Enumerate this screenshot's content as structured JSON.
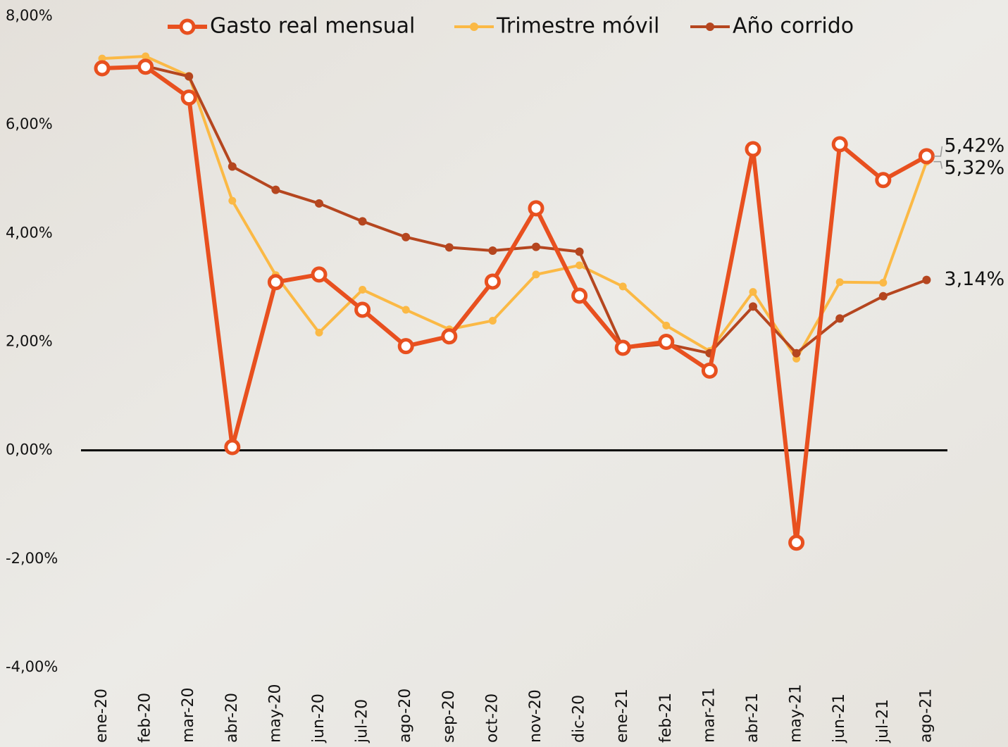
{
  "chart_data": {
    "type": "line",
    "categories": [
      "ene-20",
      "feb-20",
      "mar-20",
      "abr-20",
      "may-20",
      "jun-20",
      "jul-20",
      "ago-20",
      "sep-20",
      "oct-20",
      "nov-20",
      "dic-20",
      "ene-21",
      "feb-21",
      "mar-21",
      "abr-21",
      "may-21",
      "jun-21",
      "jul-21",
      "ago-21"
    ],
    "series": [
      {
        "name": "Gasto real mensual",
        "color": "#e8501f",
        "values": [
          7.04,
          7.07,
          6.5,
          0.06,
          3.1,
          3.24,
          2.59,
          1.92,
          2.1,
          3.11,
          4.46,
          2.85,
          1.89,
          2.0,
          1.47,
          5.55,
          -1.7,
          5.64,
          4.98,
          5.42
        ],
        "value_labels": [
          null,
          null,
          null,
          null,
          null,
          null,
          null,
          null,
          null,
          null,
          null,
          null,
          null,
          null,
          null,
          null,
          null,
          null,
          null,
          "5,42%"
        ]
      },
      {
        "name": "Trimestre móvil",
        "color": "#fbb945",
        "values": [
          7.22,
          7.26,
          6.9,
          4.6,
          3.23,
          2.17,
          2.96,
          2.59,
          2.23,
          2.39,
          3.24,
          3.41,
          3.02,
          2.3,
          1.83,
          2.92,
          1.69,
          3.1,
          3.09,
          5.32
        ],
        "value_labels": [
          null,
          null,
          null,
          null,
          null,
          null,
          null,
          null,
          null,
          null,
          null,
          null,
          null,
          null,
          null,
          null,
          null,
          null,
          null,
          "5,32%"
        ]
      },
      {
        "name": "Año corrido",
        "color": "#b5461f",
        "values": [
          7.04,
          7.08,
          6.89,
          5.23,
          4.8,
          4.55,
          4.22,
          3.93,
          3.74,
          3.68,
          3.75,
          3.66,
          1.89,
          1.96,
          1.79,
          2.65,
          1.79,
          2.43,
          2.84,
          3.14
        ],
        "value_labels": [
          null,
          null,
          null,
          null,
          null,
          null,
          null,
          null,
          null,
          null,
          null,
          null,
          null,
          null,
          null,
          null,
          null,
          null,
          null,
          "3,14%"
        ]
      }
    ],
    "ylim": [
      -4,
      8
    ],
    "yticks": [
      {
        "value": -4,
        "label": "-4,00%"
      },
      {
        "value": -2,
        "label": "-2,00%"
      },
      {
        "value": 0,
        "label": "0,00%"
      },
      {
        "value": 2,
        "label": "2,00%"
      },
      {
        "value": 4,
        "label": "4,00%"
      },
      {
        "value": 6,
        "label": "6,00%"
      },
      {
        "value": 8,
        "label": "8,00%"
      }
    ]
  }
}
